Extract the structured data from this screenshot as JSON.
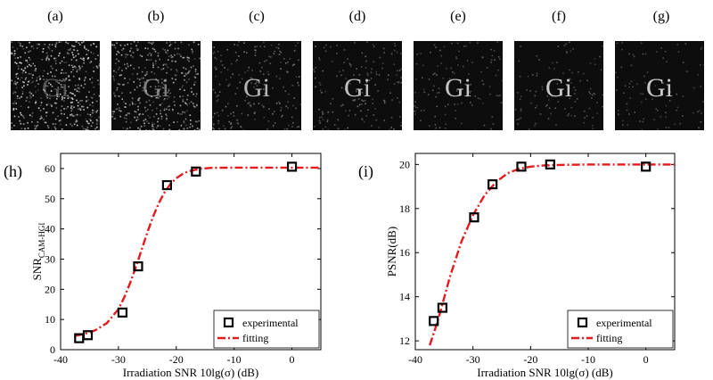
{
  "thumbnails": [
    {
      "label": "(a)",
      "noise": 0.55,
      "bright": 0.25
    },
    {
      "label": "(b)",
      "noise": 0.45,
      "bright": 0.5
    },
    {
      "label": "(c)",
      "noise": 0.22,
      "bright": 0.75
    },
    {
      "label": "(d)",
      "noise": 0.18,
      "bright": 0.8
    },
    {
      "label": "(e)",
      "noise": 0.14,
      "bright": 0.82
    },
    {
      "label": "(f)",
      "noise": 0.12,
      "bright": 0.84
    },
    {
      "label": "(g)",
      "noise": 0.1,
      "bright": 0.85
    }
  ],
  "thumbnail_glyph": "Gi",
  "chart_data": [
    {
      "type": "scatter",
      "panel": "(h)",
      "xlabel": "Irradiation SNR 10lg(σ) (dB)",
      "ylabel_main": "SNR",
      "ylabel_sub": "CAM-HGI",
      "xlim": [
        -40,
        5
      ],
      "ylim": [
        0,
        65
      ],
      "xticks": [
        -40,
        -30,
        -20,
        -10,
        0
      ],
      "yticks": [
        0,
        10,
        20,
        30,
        40,
        50,
        60
      ],
      "legend": {
        "position": "bottom-right",
        "entries": [
          "experimental",
          "fitting"
        ]
      },
      "series": [
        {
          "name": "experimental",
          "marker": "square",
          "color": "#000000",
          "x": [
            -36.8,
            -35.3,
            -29.3,
            -26.6,
            -21.6,
            -16.6,
            0
          ],
          "y": [
            3.8,
            4.8,
            12.3,
            27.6,
            54.5,
            59.0,
            60.6
          ]
        },
        {
          "name": "fitting",
          "style": "dash-dot",
          "color": "#e41a1c",
          "x": [
            -37.5,
            -36,
            -34,
            -32,
            -30,
            -29,
            -28,
            -27,
            -26,
            -25,
            -24,
            -23,
            -22,
            -21,
            -20,
            -19,
            -18,
            -16,
            -14,
            -10,
            -5,
            0,
            5
          ],
          "y": [
            4.6,
            5.1,
            6.4,
            8.8,
            13.4,
            17.3,
            22.0,
            27.3,
            33.0,
            38.8,
            44.1,
            48.6,
            52.2,
            54.9,
            56.8,
            58.1,
            59.0,
            59.9,
            60.2,
            60.3,
            60.3,
            60.3,
            60.3
          ]
        }
      ]
    },
    {
      "type": "scatter",
      "panel": "(i)",
      "xlabel": "Irradiation SNR 10lg(σ) (dB)",
      "ylabel_main": "PSNR(dB)",
      "ylabel_sub": "",
      "xlim": [
        -40,
        5
      ],
      "ylim": [
        11.6,
        20.5
      ],
      "xticks": [
        -40,
        -30,
        -20,
        -10,
        0
      ],
      "yticks": [
        12,
        14,
        16,
        18,
        20
      ],
      "legend": {
        "position": "bottom-right",
        "entries": [
          "experimental",
          "fitting"
        ]
      },
      "series": [
        {
          "name": "experimental",
          "marker": "square",
          "color": "#000000",
          "x": [
            -36.8,
            -35.3,
            -29.8,
            -26.6,
            -21.6,
            -16.6,
            0
          ],
          "y": [
            12.9,
            13.5,
            17.6,
            19.1,
            19.9,
            20.0,
            19.9
          ]
        },
        {
          "name": "fitting",
          "style": "dash-dot",
          "color": "#e41a1c",
          "x": [
            -37.5,
            -36,
            -34,
            -32,
            -30,
            -28,
            -26,
            -24,
            -22,
            -20,
            -18,
            -15,
            -10,
            -5,
            0,
            5
          ],
          "y": [
            11.8,
            13.0,
            14.9,
            16.5,
            17.7,
            18.6,
            19.2,
            19.6,
            19.8,
            19.9,
            19.95,
            19.98,
            20.0,
            20.0,
            20.0,
            20.0
          ]
        }
      ]
    }
  ]
}
